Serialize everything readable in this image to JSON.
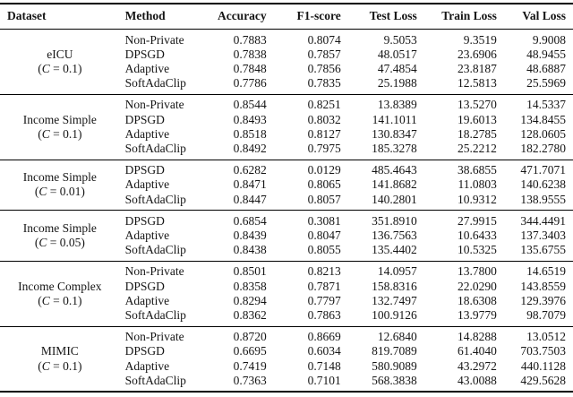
{
  "colors": {
    "background": "#ffffff",
    "rule": "#000000",
    "text": "#151515"
  },
  "table": {
    "columns": [
      "Dataset",
      "Method",
      "Accuracy",
      "F1-score",
      "Test Loss",
      "Train Loss",
      "Val Loss"
    ],
    "groups": [
      {
        "dataset": "eICU",
        "constraint": {
          "pre": "(",
          "sym": "C",
          "post": " = 0.1)"
        },
        "rows": [
          {
            "method": "Non-Private",
            "values": [
              "0.7883",
              "0.8074",
              "9.5053",
              "9.3519",
              "9.9008"
            ]
          },
          {
            "method": "DPSGD",
            "values": [
              "0.7838",
              "0.7857",
              "48.0517",
              "23.6906",
              "48.9455"
            ]
          },
          {
            "method": "Adaptive",
            "values": [
              "0.7848",
              "0.7856",
              "47.4854",
              "23.8187",
              "48.6887"
            ]
          },
          {
            "method": "SoftAdaClip",
            "values": [
              "0.7786",
              "0.7835",
              "25.1988",
              "12.5813",
              "25.5969"
            ]
          }
        ]
      },
      {
        "dataset": "Income Simple",
        "constraint": {
          "pre": "(",
          "sym": "C",
          "post": " = 0.1)"
        },
        "rows": [
          {
            "method": "Non-Private",
            "values": [
              "0.8544",
              "0.8251",
              "13.8389",
              "13.5270",
              "14.5337"
            ]
          },
          {
            "method": "DPSGD",
            "values": [
              "0.8493",
              "0.8032",
              "141.1011",
              "19.6013",
              "134.8455"
            ]
          },
          {
            "method": "Adaptive",
            "values": [
              "0.8518",
              "0.8127",
              "130.8347",
              "18.2785",
              "128.0605"
            ]
          },
          {
            "method": "SoftAdaClip",
            "values": [
              "0.8492",
              "0.7975",
              "185.3278",
              "25.2212",
              "182.2780"
            ]
          }
        ]
      },
      {
        "dataset": "Income Simple",
        "constraint": {
          "pre": "(",
          "sym": "C",
          "post": " = 0.01)"
        },
        "rows": [
          {
            "method": "DPSGD",
            "values": [
              "0.6282",
              "0.0129",
              "485.4643",
              "38.6855",
              "471.7071"
            ]
          },
          {
            "method": "Adaptive",
            "values": [
              "0.8471",
              "0.8065",
              "141.8682",
              "11.0803",
              "140.6238"
            ]
          },
          {
            "method": "SoftAdaClip",
            "values": [
              "0.8447",
              "0.8057",
              "140.2801",
              "10.9312",
              "138.9555"
            ]
          }
        ]
      },
      {
        "dataset": "Income Simple",
        "constraint": {
          "pre": "(",
          "sym": "C",
          "post": " = 0.05)"
        },
        "rows": [
          {
            "method": "DPSGD",
            "values": [
              "0.6854",
              "0.3081",
              "351.8910",
              "27.9915",
              "344.4491"
            ]
          },
          {
            "method": "Adaptive",
            "values": [
              "0.8439",
              "0.8047",
              "136.7563",
              "10.6433",
              "137.3403"
            ]
          },
          {
            "method": "SoftAdaClip",
            "values": [
              "0.8438",
              "0.8055",
              "135.4402",
              "10.5325",
              "135.6755"
            ]
          }
        ]
      },
      {
        "dataset": "Income Complex",
        "constraint": {
          "pre": "(",
          "sym": "C",
          "post": " = 0.1)"
        },
        "rows": [
          {
            "method": "Non-Private",
            "values": [
              "0.8501",
              "0.8213",
              "14.0957",
              "13.7800",
              "14.6519"
            ]
          },
          {
            "method": "DPSGD",
            "values": [
              "0.8358",
              "0.7871",
              "158.8316",
              "22.0290",
              "143.8559"
            ]
          },
          {
            "method": "Adaptive",
            "values": [
              "0.8294",
              "0.7797",
              "132.7497",
              "18.6308",
              "129.3976"
            ]
          },
          {
            "method": "SoftAdaClip",
            "values": [
              "0.8362",
              "0.7863",
              "100.9126",
              "13.9779",
              "98.7079"
            ]
          }
        ]
      },
      {
        "dataset": "MIMIC",
        "constraint": {
          "pre": "(",
          "sym": "C",
          "post": " = 0.1)"
        },
        "rows": [
          {
            "method": "Non-Private",
            "values": [
              "0.8720",
              "0.8669",
              "12.6840",
              "14.8288",
              "13.0512"
            ]
          },
          {
            "method": "DPSGD",
            "values": [
              "0.6695",
              "0.6034",
              "819.7089",
              "61.4040",
              "703.7503"
            ]
          },
          {
            "method": "Adaptive",
            "values": [
              "0.7419",
              "0.7148",
              "580.9089",
              "43.2972",
              "440.1128"
            ]
          },
          {
            "method": "SoftAdaClip",
            "values": [
              "0.7363",
              "0.7101",
              "568.3838",
              "43.0088",
              "429.5628"
            ]
          }
        ]
      }
    ]
  }
}
